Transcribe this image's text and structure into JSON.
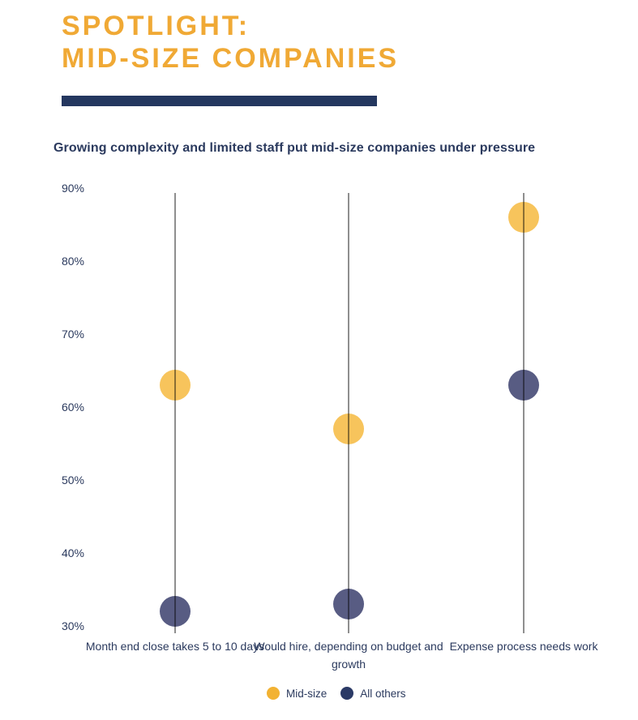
{
  "page": {
    "title_line1": "SPOTLIGHT:",
    "title_line2": "MID-SIZE COMPANIES",
    "subtitle": "Growing complexity and limited staff put mid-size companies under pressure"
  },
  "colors": {
    "title": "#F0A935",
    "rule": "#24375F",
    "text": "#2B3A5E",
    "axis_line": "#8F8F8F",
    "midsize_dot": "#F7C45C",
    "others_dot": "#585C83",
    "legend_midsize": "#F2B233",
    "legend_others": "#2B3A66"
  },
  "chart_data": {
    "type": "scatter",
    "subtype": "dot-plot",
    "title": "Growing complexity and limited staff put mid-size companies under pressure",
    "categories": [
      "Month end close takes 5 to 10 days",
      "Would hire, depending on budget and growth",
      "Expense process needs work"
    ],
    "series": [
      {
        "name": "Mid-size",
        "values": [
          63,
          57,
          86
        ]
      },
      {
        "name": "All others",
        "values": [
          32,
          33,
          63
        ]
      }
    ],
    "unit": "%",
    "ylim": [
      30,
      90
    ],
    "ytick_step": 10,
    "ytick_labels": [
      "90%",
      "80%",
      "70%",
      "60%",
      "50%",
      "40%",
      "30%"
    ],
    "grid": "vertical-category-lines",
    "legend_position": "bottom-center"
  }
}
